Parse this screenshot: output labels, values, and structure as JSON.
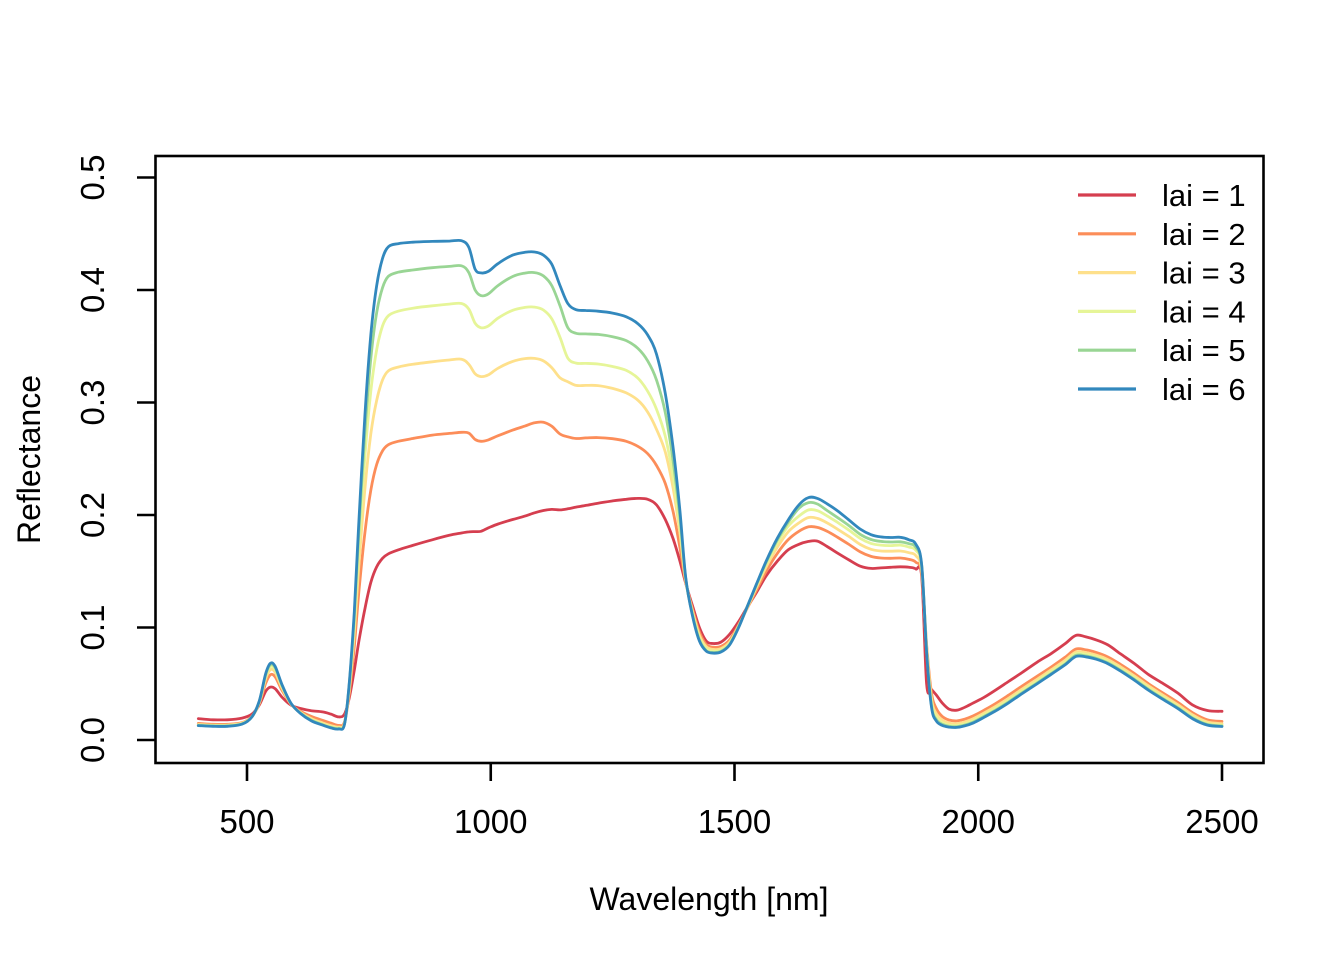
{
  "figure": {
    "background": "#FFFFFF",
    "text_color": "#000000",
    "axis_color": "#000000"
  },
  "chart_data": {
    "type": "line",
    "title": "",
    "xlabel": "Wavelength [nm]",
    "ylabel": "Reflectance",
    "xlim": [
      311,
      2584
    ],
    "ylim": [
      -0.02,
      0.52
    ],
    "grid": false,
    "legend_position": "top-right",
    "legend_frame": false,
    "x_ticks": [
      500,
      1000,
      1500,
      2000,
      2500
    ],
    "x_tick_labels": [
      "500",
      "1000",
      "1500",
      "2000",
      "2500"
    ],
    "y_ticks": [
      0.0,
      0.1,
      0.2,
      0.3,
      0.4,
      0.5
    ],
    "y_tick_labels": [
      "0.0",
      "0.1",
      "0.2",
      "0.3",
      "0.4",
      "0.5"
    ],
    "wavelength_nm": [
      400,
      430,
      460,
      490,
      510,
      525,
      538,
      548,
      558,
      572,
      590,
      610,
      632,
      655,
      672,
      688,
      700,
      710,
      720,
      730,
      742,
      754,
      766,
      778,
      790,
      810,
      840,
      880,
      915,
      940,
      955,
      968,
      980,
      995,
      1015,
      1045,
      1070,
      1090,
      1108,
      1125,
      1142,
      1158,
      1175,
      1195,
      1220,
      1250,
      1278,
      1302,
      1322,
      1340,
      1358,
      1374,
      1388,
      1400,
      1414,
      1428,
      1442,
      1456,
      1472,
      1490,
      1508,
      1526,
      1545,
      1565,
      1588,
      1610,
      1632,
      1652,
      1670,
      1690,
      1712,
      1735,
      1758,
      1780,
      1800,
      1820,
      1840,
      1858,
      1872,
      1884,
      1894,
      1904,
      1914,
      1926,
      1940,
      1956,
      1972,
      1990,
      2012,
      2036,
      2062,
      2090,
      2120,
      2150,
      2178,
      2200,
      2220,
      2242,
      2266,
      2292,
      2320,
      2350,
      2380,
      2410,
      2440,
      2470,
      2500
    ],
    "series": [
      {
        "label": "lai = 1",
        "color": "#D53E4F",
        "values": [
          0.019,
          0.018,
          0.018,
          0.0195,
          0.023,
          0.031,
          0.043,
          0.047,
          0.0455,
          0.038,
          0.031,
          0.028,
          0.026,
          0.025,
          0.023,
          0.0205,
          0.023,
          0.038,
          0.062,
          0.089,
          0.117,
          0.14,
          0.154,
          0.1615,
          0.1655,
          0.169,
          0.173,
          0.178,
          0.182,
          0.184,
          0.185,
          0.1852,
          0.1855,
          0.1885,
          0.192,
          0.196,
          0.199,
          0.202,
          0.204,
          0.205,
          0.2045,
          0.2055,
          0.207,
          0.2085,
          0.2105,
          0.2125,
          0.214,
          0.2148,
          0.214,
          0.209,
          0.196,
          0.179,
          0.159,
          0.139,
          0.119,
          0.1,
          0.088,
          0.0858,
          0.087,
          0.094,
          0.105,
          0.118,
          0.131,
          0.146,
          0.159,
          0.169,
          0.174,
          0.1765,
          0.1768,
          0.172,
          0.166,
          0.16,
          0.1545,
          0.1525,
          0.153,
          0.1535,
          0.154,
          0.1535,
          0.152,
          0.145,
          0.05,
          0.045,
          0.04,
          0.033,
          0.0275,
          0.0265,
          0.029,
          0.033,
          0.038,
          0.0445,
          0.052,
          0.06,
          0.069,
          0.077,
          0.0855,
          0.093,
          0.0918,
          0.089,
          0.0845,
          0.0765,
          0.068,
          0.058,
          0.05,
          0.0415,
          0.031,
          0.0262,
          0.0255
        ]
      },
      {
        "label": "lai = 2",
        "color": "#FC8D59",
        "values": [
          0.0148,
          0.014,
          0.014,
          0.0155,
          0.021,
          0.032,
          0.05,
          0.058,
          0.056,
          0.044,
          0.032,
          0.0255,
          0.021,
          0.0175,
          0.015,
          0.013,
          0.016,
          0.042,
          0.083,
          0.134,
          0.185,
          0.222,
          0.245,
          0.257,
          0.2625,
          0.2655,
          0.268,
          0.271,
          0.2725,
          0.2735,
          0.2728,
          0.2672,
          0.2655,
          0.2668,
          0.2705,
          0.2755,
          0.279,
          0.282,
          0.2825,
          0.279,
          0.272,
          0.2695,
          0.268,
          0.2685,
          0.2688,
          0.2678,
          0.2655,
          0.261,
          0.2545,
          0.244,
          0.228,
          0.203,
          0.171,
          0.14,
          0.116,
          0.096,
          0.085,
          0.0825,
          0.0832,
          0.089,
          0.102,
          0.117,
          0.133,
          0.15,
          0.166,
          0.178,
          0.1855,
          0.1895,
          0.189,
          0.1855,
          0.18,
          0.1738,
          0.1672,
          0.1632,
          0.1618,
          0.1615,
          0.1618,
          0.1605,
          0.158,
          0.148,
          0.085,
          0.042,
          0.028,
          0.021,
          0.0178,
          0.017,
          0.0185,
          0.0215,
          0.0265,
          0.0325,
          0.0398,
          0.048,
          0.0565,
          0.065,
          0.0735,
          0.0808,
          0.0802,
          0.0778,
          0.0738,
          0.0672,
          0.0592,
          0.0498,
          0.0415,
          0.0332,
          0.0242,
          0.018,
          0.0165
        ]
      },
      {
        "label": "lai = 3",
        "color": "#FEE08B",
        "values": [
          0.0138,
          0.0132,
          0.0132,
          0.015,
          0.0208,
          0.033,
          0.054,
          0.0625,
          0.06,
          0.046,
          0.0322,
          0.0245,
          0.019,
          0.0152,
          0.0128,
          0.0115,
          0.015,
          0.046,
          0.095,
          0.158,
          0.224,
          0.272,
          0.302,
          0.32,
          0.3282,
          0.3315,
          0.334,
          0.3362,
          0.3378,
          0.3385,
          0.334,
          0.3255,
          0.323,
          0.3245,
          0.3305,
          0.3365,
          0.339,
          0.3392,
          0.337,
          0.331,
          0.322,
          0.3185,
          0.3152,
          0.3152,
          0.315,
          0.3125,
          0.3085,
          0.302,
          0.2915,
          0.2762,
          0.256,
          0.224,
          0.184,
          0.141,
          0.114,
          0.093,
          0.083,
          0.0805,
          0.0812,
          0.087,
          0.101,
          0.1175,
          0.1355,
          0.154,
          0.1715,
          0.185,
          0.193,
          0.1978,
          0.197,
          0.193,
          0.1872,
          0.1808,
          0.1738,
          0.1695,
          0.168,
          0.1678,
          0.168,
          0.1665,
          0.1638,
          0.15,
          0.0825,
          0.0368,
          0.0235,
          0.0178,
          0.015,
          0.0145,
          0.016,
          0.019,
          0.024,
          0.03,
          0.037,
          0.0452,
          0.0538,
          0.0625,
          0.0708,
          0.0782,
          0.0778,
          0.0755,
          0.0715,
          0.065,
          0.057,
          0.0478,
          0.0395,
          0.0312,
          0.0222,
          0.016,
          0.0145
        ]
      },
      {
        "label": "lai = 4",
        "color": "#E6F598",
        "values": [
          0.0133,
          0.0128,
          0.0128,
          0.0146,
          0.0206,
          0.0335,
          0.0562,
          0.0652,
          0.0625,
          0.0475,
          0.0322,
          0.024,
          0.018,
          0.0142,
          0.0118,
          0.0108,
          0.0145,
          0.049,
          0.104,
          0.176,
          0.253,
          0.31,
          0.347,
          0.368,
          0.3772,
          0.3812,
          0.3838,
          0.386,
          0.3875,
          0.388,
          0.383,
          0.3705,
          0.3665,
          0.368,
          0.375,
          0.382,
          0.3845,
          0.3848,
          0.3822,
          0.3745,
          0.358,
          0.3395,
          0.335,
          0.3348,
          0.3342,
          0.332,
          0.3285,
          0.3215,
          0.31,
          0.294,
          0.27,
          0.234,
          0.19,
          0.142,
          0.1125,
          0.091,
          0.081,
          0.079,
          0.0798,
          0.0858,
          0.1005,
          0.118,
          0.137,
          0.1565,
          0.1755,
          0.19,
          0.199,
          0.2045,
          0.2038,
          0.1992,
          0.1932,
          0.1865,
          0.1792,
          0.1748,
          0.1732,
          0.1728,
          0.1732,
          0.1715,
          0.1685,
          0.154,
          0.081,
          0.0335,
          0.0205,
          0.0155,
          0.0132,
          0.0128,
          0.0142,
          0.0172,
          0.0222,
          0.0282,
          0.0352,
          0.0435,
          0.052,
          0.0608,
          0.069,
          0.0765,
          0.0762,
          0.0738,
          0.0698,
          0.0632,
          0.0552,
          0.046,
          0.0378,
          0.0295,
          0.0205,
          0.0145,
          0.0132
        ]
      },
      {
        "label": "lai = 5",
        "color": "#99D594",
        "values": [
          0.013,
          0.0125,
          0.0125,
          0.0143,
          0.0205,
          0.034,
          0.0575,
          0.067,
          0.0642,
          0.0485,
          0.0325,
          0.0238,
          0.0175,
          0.0136,
          0.0112,
          0.0102,
          0.0142,
          0.051,
          0.11,
          0.189,
          0.275,
          0.339,
          0.38,
          0.402,
          0.4122,
          0.4158,
          0.4178,
          0.4198,
          0.421,
          0.4215,
          0.4155,
          0.4,
          0.395,
          0.3965,
          0.404,
          0.412,
          0.415,
          0.4155,
          0.4125,
          0.404,
          0.386,
          0.3665,
          0.3615,
          0.361,
          0.3605,
          0.3585,
          0.355,
          0.348,
          0.337,
          0.32,
          0.291,
          0.248,
          0.198,
          0.143,
          0.111,
          0.089,
          0.0795,
          0.0778,
          0.0788,
          0.085,
          0.1,
          0.1185,
          0.138,
          0.158,
          0.178,
          0.1935,
          0.206,
          0.211,
          0.2098,
          0.204,
          0.1975,
          0.1905,
          0.1828,
          0.1782,
          0.1765,
          0.176,
          0.1762,
          0.1745,
          0.1712,
          0.155,
          0.079,
          0.0305,
          0.0182,
          0.014,
          0.0122,
          0.0118,
          0.0132,
          0.016,
          0.021,
          0.0268,
          0.0338,
          0.042,
          0.0505,
          0.0592,
          0.0675,
          0.0752,
          0.0748,
          0.0725,
          0.0685,
          0.062,
          0.054,
          0.0448,
          0.0365,
          0.0285,
          0.0195,
          0.0138,
          0.0125
        ]
      },
      {
        "label": "lai = 6",
        "color": "#3288BD",
        "values": [
          0.0128,
          0.0122,
          0.0122,
          0.0141,
          0.0205,
          0.0345,
          0.0585,
          0.0682,
          0.0652,
          0.049,
          0.0328,
          0.0235,
          0.017,
          0.0132,
          0.0108,
          0.0098,
          0.014,
          0.052,
          0.114,
          0.198,
          0.29,
          0.36,
          0.404,
          0.428,
          0.4385,
          0.4412,
          0.4425,
          0.4432,
          0.4435,
          0.4438,
          0.438,
          0.4185,
          0.4152,
          0.4165,
          0.4235,
          0.431,
          0.4335,
          0.4338,
          0.431,
          0.423,
          0.404,
          0.388,
          0.3825,
          0.3818,
          0.3812,
          0.3795,
          0.3762,
          0.37,
          0.36,
          0.343,
          0.308,
          0.26,
          0.204,
          0.144,
          0.11,
          0.088,
          0.079,
          0.0772,
          0.0782,
          0.0845,
          0.0995,
          0.1185,
          0.1385,
          0.159,
          0.1795,
          0.1955,
          0.209,
          0.2155,
          0.2148,
          0.21,
          0.2035,
          0.1955,
          0.1875,
          0.1825,
          0.1805,
          0.18,
          0.1802,
          0.178,
          0.174,
          0.1555,
          0.078,
          0.0292,
          0.017,
          0.013,
          0.0115,
          0.0112,
          0.0125,
          0.0152,
          0.0202,
          0.026,
          0.033,
          0.0412,
          0.0498,
          0.0585,
          0.0668,
          0.0742,
          0.074,
          0.0718,
          0.0678,
          0.0612,
          0.0532,
          0.044,
          0.0358,
          0.0278,
          0.0188,
          0.0132,
          0.012
        ]
      }
    ]
  }
}
